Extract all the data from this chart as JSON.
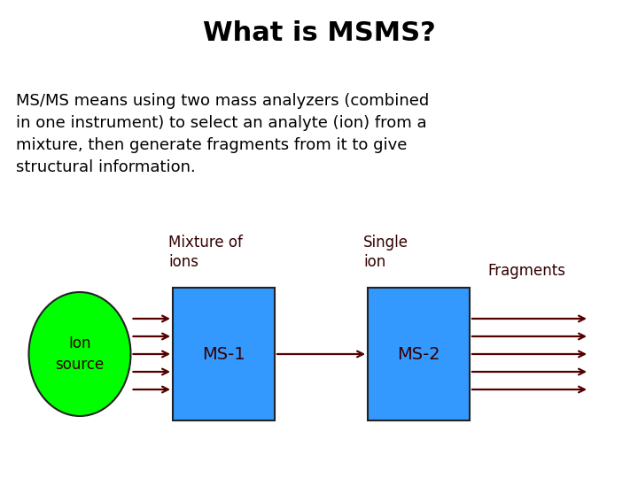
{
  "title": "What is MSMS?",
  "title_fontsize": 22,
  "title_fontweight": "bold",
  "body_text": "MS/MS means using two mass analyzers (combined\nin one instrument) to select an analyte (ion) from a\nmixture, then generate fragments from it to give\nstructural information.",
  "body_fontsize": 13,
  "background_color": "#ffffff",
  "ellipse_color": "#00ff00",
  "ellipse_label": "Ion\nsource",
  "ellipse_label_fontsize": 12,
  "box1_color": "#3399ff",
  "box1_label": "MS-1",
  "box2_color": "#3399ff",
  "box2_label": "MS-2",
  "label_mixture": "Mixture of\nions",
  "label_single": "Single\nion",
  "label_fragments": "Fragments",
  "arrow_color": "#550000",
  "text_color": "#000000",
  "diagram_text_color": "#330000"
}
